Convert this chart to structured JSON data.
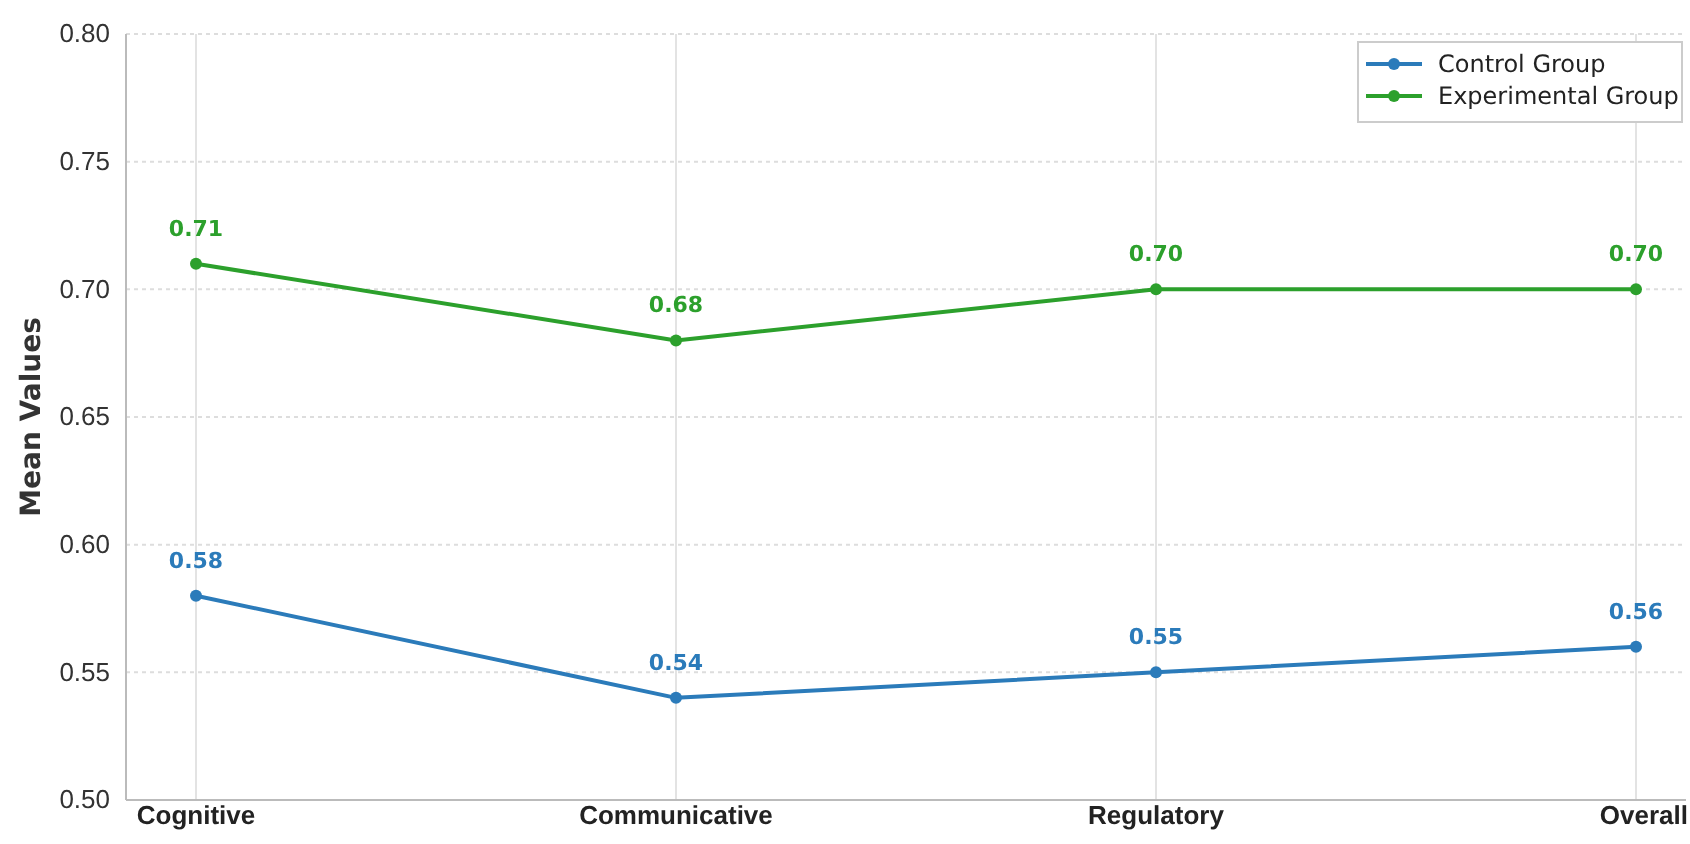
{
  "chart_data": {
    "type": "line",
    "ylabel": "Mean Values",
    "categories": [
      "Cognitive",
      "Communicative",
      "Regulatory",
      "Overall"
    ],
    "series": [
      {
        "name": "Control Group",
        "color": "#2b7bba",
        "values": [
          0.58,
          0.54,
          0.55,
          0.56
        ],
        "value_labels": [
          "0.58",
          "0.54",
          "0.55",
          "0.56"
        ]
      },
      {
        "name": "Experimental Group",
        "color": "#2ca02c",
        "values": [
          0.71,
          0.68,
          0.7,
          0.7
        ],
        "value_labels": [
          "0.71",
          "0.68",
          "0.70",
          "0.70"
        ]
      }
    ],
    "ylim": [
      0.5,
      0.8
    ],
    "yticks": [
      {
        "value": 0.5,
        "label": "0.50"
      },
      {
        "value": 0.55,
        "label": "0.55"
      },
      {
        "value": 0.6,
        "label": "0.60"
      },
      {
        "value": 0.65,
        "label": "0.65"
      },
      {
        "value": 0.7,
        "label": "0.70"
      },
      {
        "value": 0.75,
        "label": "0.75"
      },
      {
        "value": 0.8,
        "label": "0.80"
      }
    ],
    "grid": true,
    "legend": "top right",
    "marker": "circle",
    "line_style": "solid"
  }
}
